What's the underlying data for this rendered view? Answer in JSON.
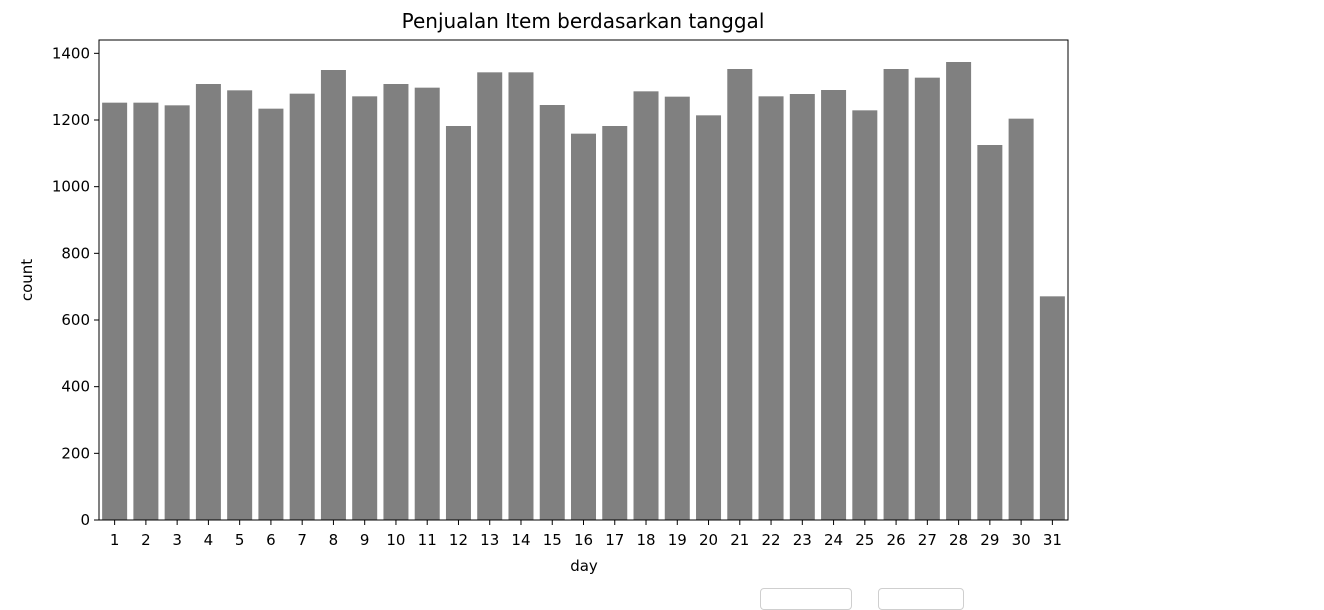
{
  "chart_data": {
    "type": "bar",
    "title": "Penjualan Item berdasarkan tanggal",
    "xlabel": "day",
    "ylabel": "count",
    "categories": [
      "1",
      "2",
      "3",
      "4",
      "5",
      "6",
      "7",
      "8",
      "9",
      "10",
      "11",
      "12",
      "13",
      "14",
      "15",
      "16",
      "17",
      "18",
      "19",
      "20",
      "21",
      "22",
      "23",
      "24",
      "25",
      "26",
      "27",
      "28",
      "29",
      "30",
      "31"
    ],
    "values": [
      1252,
      1252,
      1244,
      1308,
      1289,
      1234,
      1279,
      1350,
      1271,
      1308,
      1297,
      1182,
      1343,
      1343,
      1245,
      1159,
      1182,
      1286,
      1270,
      1214,
      1353,
      1271,
      1278,
      1290,
      1229,
      1353,
      1327,
      1374,
      1125,
      1204,
      671
    ],
    "ylim": [
      0,
      1440
    ],
    "yticks": [
      0,
      200,
      400,
      600,
      800,
      1000,
      1200,
      1400
    ],
    "bar_color": "#808080",
    "grid": false,
    "legend": "none"
  }
}
